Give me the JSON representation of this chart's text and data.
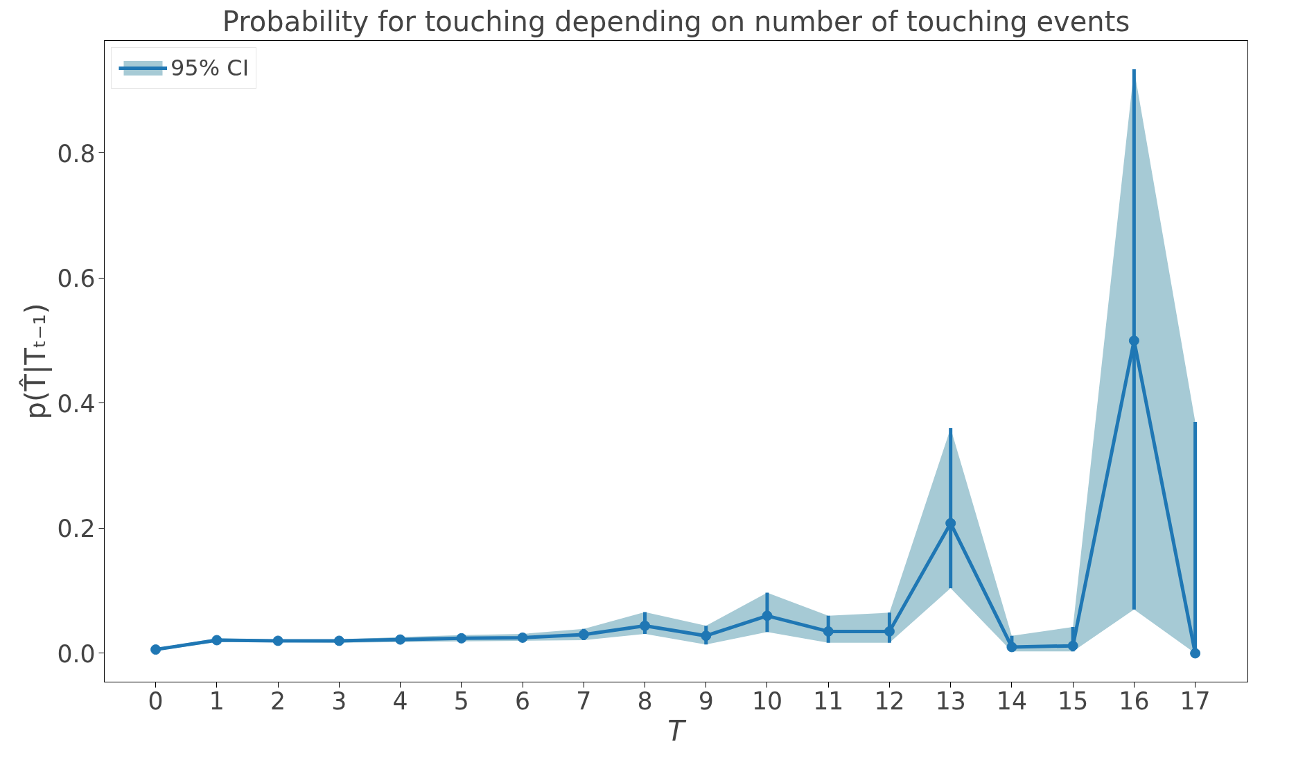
{
  "chart_data": {
    "type": "line",
    "title": "Probability for touching depending on number of touching events",
    "xlabel": "T",
    "ylabel": "p(T̂|Tₜ₋₁)",
    "x": [
      0,
      1,
      2,
      3,
      4,
      5,
      6,
      7,
      8,
      9,
      10,
      11,
      12,
      13,
      14,
      15,
      16,
      17
    ],
    "series": [
      {
        "name": "95% CI",
        "color": "#1f77b4",
        "values": [
          0.006,
          0.021,
          0.02,
          0.02,
          0.022,
          0.024,
          0.025,
          0.03,
          0.044,
          0.028,
          0.06,
          0.035,
          0.035,
          0.208,
          0.01,
          0.012,
          0.5,
          0.0
        ],
        "lower": [
          0.004,
          0.018,
          0.018,
          0.017,
          0.018,
          0.019,
          0.02,
          0.021,
          0.031,
          0.014,
          0.034,
          0.017,
          0.017,
          0.104,
          0.003,
          0.003,
          0.07,
          0.0
        ],
        "upper": [
          0.008,
          0.024,
          0.022,
          0.022,
          0.026,
          0.029,
          0.031,
          0.039,
          0.066,
          0.044,
          0.097,
          0.06,
          0.065,
          0.36,
          0.028,
          0.042,
          0.934,
          0.37
        ],
        "errors": [
          null,
          null,
          null,
          null,
          null,
          null,
          null,
          [
            0.021,
            0.039
          ],
          [
            0.031,
            0.066
          ],
          [
            0.014,
            0.044
          ],
          [
            0.034,
            0.097
          ],
          [
            0.017,
            0.06
          ],
          [
            0.017,
            0.065
          ],
          [
            0.104,
            0.36
          ],
          [
            0.003,
            0.028
          ],
          [
            0.003,
            0.042
          ],
          [
            0.07,
            0.934
          ],
          [
            0.0,
            0.37
          ]
        ]
      }
    ],
    "xlim": [
      -0.84,
      17.86
    ],
    "ylim": [
      -0.046,
      0.98
    ],
    "xticks": [
      0,
      1,
      2,
      3,
      4,
      5,
      6,
      7,
      8,
      9,
      10,
      11,
      12,
      13,
      14,
      15,
      16,
      17
    ],
    "yticks": [
      {
        "value": 0,
        "label": "0.0"
      },
      0.2,
      0.4,
      0.6,
      0.8
    ],
    "marker": "circle",
    "line_style": "solid",
    "legend": "top left",
    "grid": false
  }
}
